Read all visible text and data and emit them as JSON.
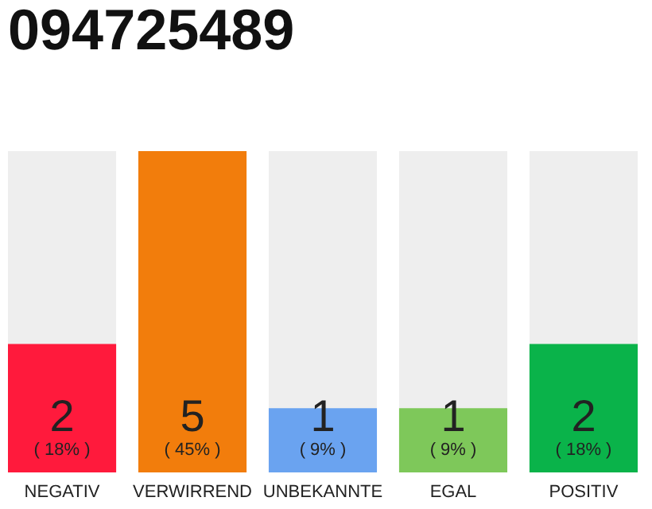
{
  "chart_data": {
    "type": "bar",
    "title": "094725489",
    "categories": [
      "NEGATIV",
      "VERWIRREND",
      "UNBEKANNTE",
      "EGAL",
      "POSITIV"
    ],
    "values": [
      18,
      45,
      9,
      9,
      18
    ],
    "colors": [
      "#ff1a3c",
      "#f27d0c",
      "#6aa3f0",
      "#7ec85a",
      "#0ab34a"
    ],
    "value_labels": [
      "( 18% )",
      "( 45% )",
      "( 9% )",
      "( 9% )",
      "( 18% )"
    ],
    "annotations": [
      "2",
      "5",
      "1",
      "1",
      "2"
    ],
    "tick_labels": "x"
  }
}
